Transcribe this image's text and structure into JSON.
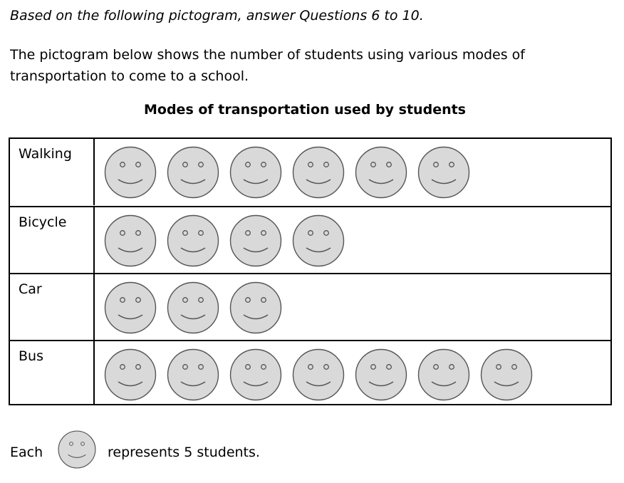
{
  "instruction": "Based on the following pictogram, answer Questions 6 to 10.",
  "intro": "The pictogram below shows the number of students using various modes of transportation to come to a school.",
  "chart_data": {
    "type": "table",
    "title": "Modes of transportation used by students",
    "categories": [
      "Walking",
      "Bicycle",
      "Car",
      "Bus"
    ],
    "symbols": [
      6,
      4,
      3,
      7
    ],
    "values": [
      30,
      20,
      15,
      35
    ],
    "symbol_value": 5
  },
  "key": {
    "each": "Each",
    "text": "represents 5 students."
  },
  "colors": {
    "face_fill": "#d9d9d9",
    "stroke": "#555555"
  }
}
